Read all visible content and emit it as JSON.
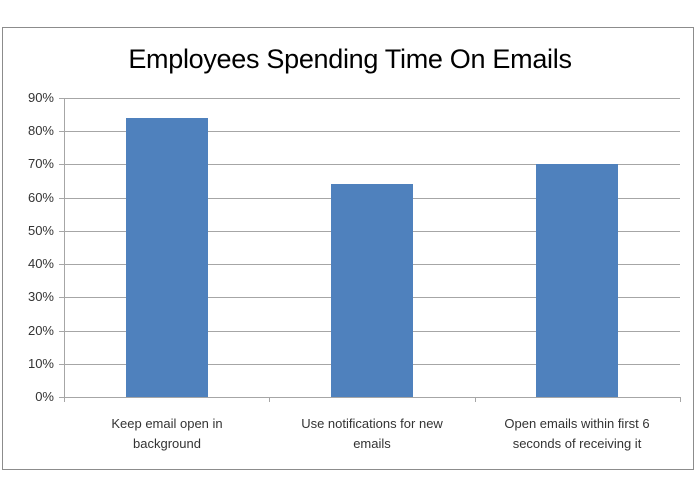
{
  "chart_data": {
    "type": "bar",
    "title": "Employees Spending Time On Emails",
    "xlabel": "",
    "ylabel": "",
    "categories": [
      "Keep email open in background",
      "Use notifications for new emails",
      "Open emails within first 6 seconds of receiving it"
    ],
    "category_lines": [
      [
        "Keep email open in",
        "background"
      ],
      [
        "Use notifications for new",
        "emails"
      ],
      [
        "Open emails within first 6",
        "seconds of receiving it"
      ]
    ],
    "values": [
      84,
      64,
      70
    ],
    "value_format": "percent",
    "ylim": [
      0,
      90
    ],
    "yticks": [
      "0%",
      "10%",
      "20%",
      "30%",
      "40%",
      "50%",
      "60%",
      "70%",
      "80%",
      "90%"
    ],
    "grid": true,
    "legend": null,
    "bar_color": "#4f81bd"
  }
}
